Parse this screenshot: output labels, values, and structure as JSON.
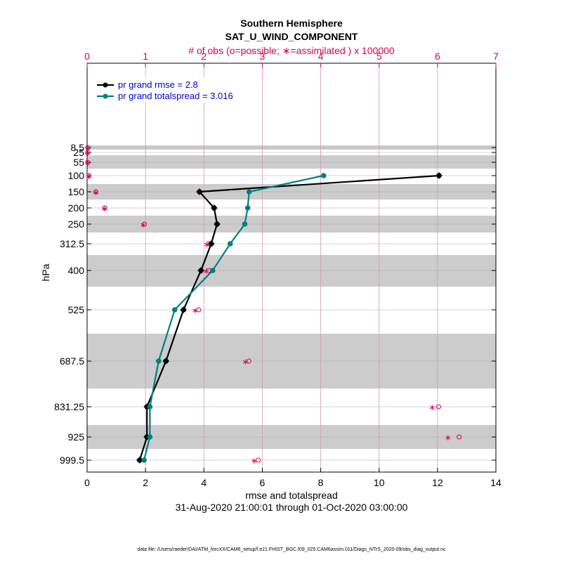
{
  "chart_data": {
    "type": "line",
    "title": "Southern Hemisphere",
    "subtitle": "SAT_U_WIND_COMPONENT",
    "top_axis_label": "# of obs (o=possible; ∗=assimilated ) x 100000",
    "xlabel": "rmse and totalspread",
    "ylabel": "hPa",
    "date_range": "31-Aug-2020 21:00:01 through 01-Oct-2020 03:00:00",
    "footer": "data file: /Users/raeder/DAI/ATM_forcXX/CAM6_setup/f.e21.FHIST_BGC.f09_025.CAM6assim.011/Diags_NTrS_2020-09/obs_diag_output.nc",
    "xlim": [
      0,
      14
    ],
    "xticks": [
      "0",
      "2",
      "4",
      "6",
      "8",
      "10",
      "12",
      "14"
    ],
    "top_xlim": [
      0,
      7
    ],
    "top_xticks": [
      "0",
      "1",
      "2",
      "3",
      "4",
      "5",
      "6",
      "7"
    ],
    "levels": [
      8.5,
      25,
      55,
      100,
      150,
      200,
      250,
      312.5,
      400,
      525,
      687.5,
      831.25,
      925,
      999.5
    ],
    "level_labels": [
      "8.5",
      "25",
      "55",
      "100",
      "150",
      "200",
      "250",
      "312.5",
      "400",
      "525",
      "687.5",
      "831.25",
      "925",
      "999.5"
    ],
    "series": [
      {
        "name": "pr grand rmse = 2.8",
        "color": "#000000",
        "marker": "star",
        "levels": [
          100,
          150,
          200,
          250,
          312.5,
          400,
          525,
          687.5,
          831.25,
          925,
          999.5
        ],
        "values": [
          12.05,
          3.85,
          4.35,
          4.45,
          4.25,
          3.9,
          3.3,
          2.7,
          2.05,
          2.05,
          1.8
        ]
      },
      {
        "name": "pr grand totalspread = 3.016",
        "color": "#008080",
        "marker": "circle",
        "levels": [
          100,
          150,
          200,
          250,
          312.5,
          400,
          525,
          687.5,
          831.25,
          925,
          999.5
        ],
        "values": [
          8.1,
          5.55,
          5.5,
          5.4,
          4.9,
          4.3,
          3.0,
          2.45,
          2.15,
          2.15,
          1.95
        ]
      }
    ],
    "obs_possible_x100000": {
      "levels": [
        8.5,
        25,
        55,
        100,
        150,
        200,
        250,
        312.5,
        400,
        525,
        687.5,
        831.25,
        925,
        999.5
      ],
      "values": [
        0.01,
        0.01,
        0.01,
        0.03,
        0.15,
        0.3,
        0.98,
        2.08,
        2.08,
        1.91,
        2.77,
        6.02,
        6.37,
        2.93
      ]
    },
    "obs_assimilated_x100000": {
      "levels": [
        8.5,
        25,
        55,
        100,
        150,
        200,
        250,
        312.5,
        400,
        525,
        687.5,
        831.25,
        925,
        999.5
      ],
      "values": [
        0.01,
        0.01,
        0.01,
        0.03,
        0.15,
        0.3,
        0.96,
        2.05,
        2.04,
        1.85,
        2.71,
        5.91,
        6.18,
        2.86
      ]
    },
    "legend_position": "top-left",
    "grid": true
  }
}
